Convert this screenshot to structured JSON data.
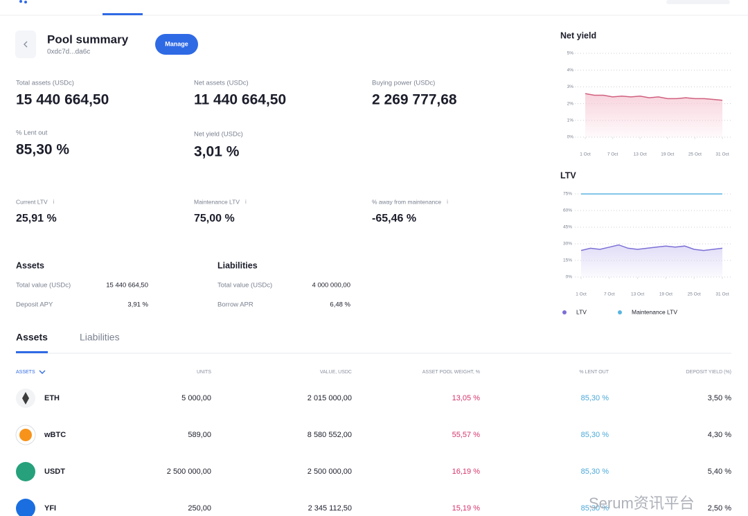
{
  "header": {
    "title": "Pool summary",
    "address": "0xdc7d...da6c",
    "button": "Manage"
  },
  "stats": [
    {
      "label": "Total assets (USDc)",
      "value": "15 440 664,50"
    },
    {
      "label": "Net assets (USDc)",
      "value": "11 440 664,50"
    },
    {
      "label": "Buying power (USDc)",
      "value": "2 269 777,68"
    },
    {
      "label": "% Lent out",
      "value": "85,30 %"
    },
    {
      "label": "Net yield (USDc)",
      "value": "3,01 %"
    },
    {
      "label": "Current LTV",
      "value": "25,91 %"
    },
    {
      "label": "Maintenance LTV",
      "value": "75,00 %"
    },
    {
      "label": "% away from maintenance",
      "value": "-65,46 %"
    }
  ],
  "summary": [
    {
      "title": "Assets",
      "rows": [
        [
          "Total value (USDc)",
          "15 440 664,50"
        ],
        [
          "Deposit APY",
          "3,91 %"
        ]
      ]
    },
    {
      "title": "Liabilities",
      "rows": [
        [
          "Total value (USDc)",
          "4 000 000,00"
        ],
        [
          "Borrow APR",
          "6,48 %"
        ]
      ]
    }
  ],
  "tabs": [
    "Assets",
    "Liabilities"
  ],
  "table": {
    "columns": [
      "ASSETS",
      "UNITS",
      "VALUE, USDC",
      "ASSET POOL WEIGHT, %",
      "% LENT OUT",
      "DEPOSIT YIELD (%)"
    ],
    "rows": [
      [
        "ETH",
        "5 000,00",
        "2 015 000,00",
        "13,05 %",
        "85,30 %",
        "3,50 %"
      ],
      [
        "wBTC",
        "589,00",
        "8 580 552,00",
        "55,57 %",
        "85,30 %",
        "4,30 %"
      ],
      [
        "USDT",
        "2 500 000,00",
        "2 500 000,00",
        "16,19 %",
        "85,30 %",
        "5,40 %"
      ],
      [
        "YFI",
        "250,00",
        "2 345 112,50",
        "15,19 %",
        "85,30 %",
        "2,50 %"
      ]
    ]
  },
  "watermark": "Serum资讯平台",
  "chart_data": [
    {
      "type": "line",
      "title": "Net yield",
      "x": [
        1,
        3,
        5,
        7,
        9,
        11,
        13,
        15,
        17,
        19,
        21,
        23,
        25,
        27,
        29,
        31
      ],
      "xlim": [
        1,
        31
      ],
      "xticks": [
        {
          "value": 1,
          "label": "1 Oct"
        },
        {
          "value": 7,
          "label": "7 Oct"
        },
        {
          "value": 13,
          "label": "13 Oct"
        },
        {
          "value": 19,
          "label": "19 Oct"
        },
        {
          "value": 25,
          "label": "25 Oct"
        },
        {
          "value": 31,
          "label": "31 Oct"
        }
      ],
      "ylim": [
        0,
        5
      ],
      "yticks": [
        {
          "value": 0,
          "label": "0%"
        },
        {
          "value": 1,
          "label": "1%"
        },
        {
          "value": 2,
          "label": "2%"
        },
        {
          "value": 3,
          "label": "3%"
        },
        {
          "value": 4,
          "label": "4%"
        },
        {
          "value": 5,
          "label": "5%"
        }
      ],
      "grid": true,
      "series": [
        {
          "color": "#d0607e",
          "values": [
            2.6,
            2.5,
            2.5,
            2.4,
            2.45,
            2.4,
            2.45,
            2.35,
            2.4,
            2.3,
            2.3,
            2.35,
            2.3,
            2.3,
            2.25,
            2.2
          ]
        }
      ]
    },
    {
      "type": "line",
      "title": "LTV",
      "x": [
        1,
        3,
        5,
        7,
        9,
        11,
        13,
        15,
        17,
        19,
        21,
        23,
        25,
        27,
        29,
        31
      ],
      "xlim": [
        1,
        31
      ],
      "xticks": [
        {
          "value": 1,
          "label": "1 Oct"
        },
        {
          "value": 7,
          "label": "7 Oct"
        },
        {
          "value": 13,
          "label": "13 Oct"
        },
        {
          "value": 19,
          "label": "19 Oct"
        },
        {
          "value": 25,
          "label": "25 Oct"
        },
        {
          "value": 31,
          "label": "31 Oct"
        }
      ],
      "ylim": [
        0,
        75
      ],
      "yticks": [
        {
          "value": 0,
          "label": "0%"
        },
        {
          "value": 15,
          "label": "15%"
        },
        {
          "value": 30,
          "label": "30%"
        },
        {
          "value": 45,
          "label": "45%"
        },
        {
          "value": 60,
          "label": "60%"
        },
        {
          "value": 75,
          "label": "75%"
        }
      ],
      "grid": true,
      "legend": "bottom",
      "series": [
        {
          "name": "LTV",
          "color": "#7b6fd6",
          "values": [
            24,
            26,
            25,
            27,
            29,
            26,
            25,
            26,
            27,
            28,
            27,
            28,
            25,
            24,
            25,
            26
          ]
        },
        {
          "name": "Maintenance LTV",
          "color": "#5ab4e0",
          "values": [
            75,
            75,
            75,
            75,
            75,
            75,
            75,
            75,
            75,
            75,
            75,
            75,
            75,
            75,
            75,
            75
          ]
        }
      ]
    }
  ]
}
